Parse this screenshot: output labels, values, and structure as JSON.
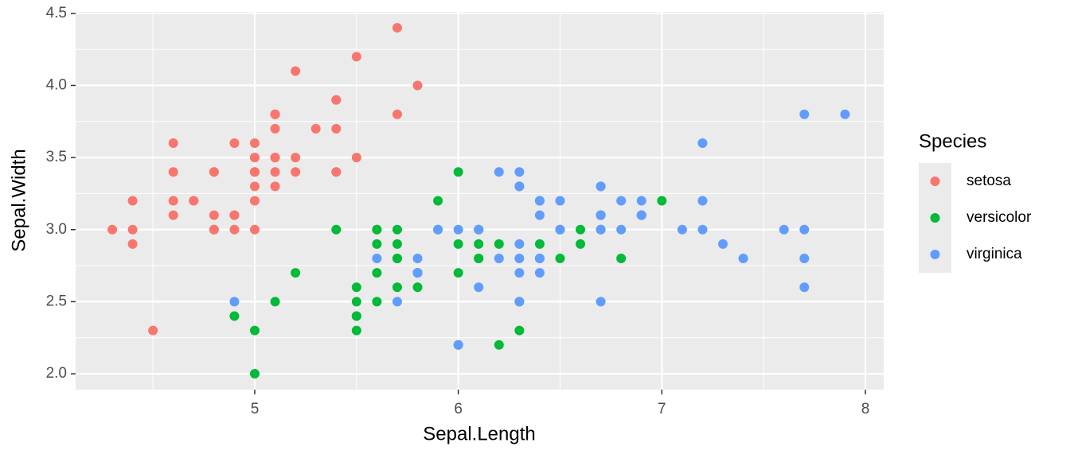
{
  "chart_data": {
    "type": "scatter",
    "x_label": "Sepal.Length",
    "y_label": "Sepal.Width",
    "legend_title": "Species",
    "xlim": [
      4.12,
      8.09
    ],
    "ylim": [
      1.89,
      4.51
    ],
    "xticks": [
      5,
      6,
      7,
      8
    ],
    "yticks": [
      {
        "value": 2,
        "label": "2.0"
      },
      2.5,
      {
        "value": 3,
        "label": "3.0"
      },
      3.5,
      {
        "value": 4,
        "label": "4.0"
      },
      4.5
    ],
    "grid": true,
    "legend_position": "right",
    "series": [
      {
        "name": "setosa",
        "color": "#F8766D",
        "x": [
          5.1,
          4.9,
          4.7,
          4.6,
          5.0,
          5.4,
          4.6,
          5.0,
          4.4,
          4.9,
          5.4,
          4.8,
          4.8,
          4.3,
          5.8,
          5.7,
          5.4,
          5.1,
          5.7,
          5.1,
          5.4,
          5.1,
          4.6,
          5.1,
          4.8,
          5.0,
          5.0,
          5.2,
          5.2,
          4.7,
          4.8,
          5.4,
          5.2,
          5.5,
          4.9,
          5.0,
          5.5,
          4.9,
          4.4,
          5.1,
          5.0,
          4.5,
          4.4,
          5.0,
          5.1,
          4.8,
          5.1,
          4.6,
          5.3,
          5.0
        ],
        "values": [
          3.5,
          3.0,
          3.2,
          3.1,
          3.6,
          3.9,
          3.4,
          3.4,
          2.9,
          3.1,
          3.7,
          3.4,
          3.0,
          3.0,
          4.0,
          4.4,
          3.9,
          3.5,
          3.8,
          3.8,
          3.4,
          3.7,
          3.6,
          3.3,
          3.4,
          3.0,
          3.4,
          3.5,
          3.4,
          3.2,
          3.1,
          3.4,
          4.1,
          4.2,
          3.1,
          3.2,
          3.5,
          3.6,
          3.0,
          3.4,
          3.5,
          2.3,
          3.2,
          3.5,
          3.8,
          3.0,
          3.8,
          3.2,
          3.7,
          3.3
        ]
      },
      {
        "name": "versicolor",
        "color": "#00BA38",
        "x": [
          7.0,
          6.4,
          6.9,
          5.5,
          6.5,
          5.7,
          6.3,
          4.9,
          6.6,
          5.2,
          5.0,
          5.9,
          6.0,
          6.1,
          5.6,
          6.7,
          5.6,
          5.8,
          6.2,
          5.6,
          5.9,
          6.1,
          6.3,
          6.1,
          6.4,
          6.6,
          6.8,
          6.7,
          6.0,
          5.7,
          5.5,
          5.5,
          5.8,
          6.0,
          5.4,
          6.0,
          6.7,
          6.3,
          5.6,
          5.5,
          5.5,
          6.1,
          5.8,
          5.0,
          5.6,
          5.7,
          5.7,
          6.2,
          5.1,
          5.7
        ],
        "values": [
          3.2,
          3.2,
          3.1,
          2.3,
          2.8,
          2.8,
          3.3,
          2.4,
          2.9,
          2.7,
          2.0,
          3.0,
          2.2,
          2.9,
          2.9,
          3.1,
          3.0,
          2.7,
          2.2,
          2.5,
          3.2,
          2.8,
          2.5,
          2.8,
          2.9,
          3.0,
          2.8,
          3.0,
          2.9,
          2.6,
          2.4,
          2.4,
          2.7,
          2.7,
          3.0,
          3.4,
          3.1,
          2.3,
          3.0,
          2.5,
          2.6,
          3.0,
          2.6,
          2.3,
          2.7,
          3.0,
          2.9,
          2.9,
          2.5,
          2.8
        ]
      },
      {
        "name": "virginica",
        "color": "#619CFF",
        "x": [
          6.3,
          5.8,
          7.1,
          6.3,
          6.5,
          7.6,
          4.9,
          7.3,
          6.7,
          7.2,
          6.5,
          6.4,
          6.8,
          5.7,
          5.8,
          6.4,
          6.5,
          7.7,
          7.7,
          6.0,
          6.9,
          5.6,
          7.7,
          6.3,
          6.7,
          7.2,
          6.2,
          6.1,
          6.4,
          7.2,
          7.4,
          7.9,
          6.4,
          6.3,
          6.1,
          7.7,
          6.3,
          6.4,
          6.0,
          6.9,
          6.7,
          6.9,
          5.8,
          6.8,
          6.7,
          6.7,
          6.3,
          6.5,
          6.2,
          5.9
        ],
        "values": [
          3.3,
          2.7,
          3.0,
          2.9,
          3.0,
          3.0,
          2.5,
          2.9,
          2.5,
          3.6,
          3.2,
          2.7,
          3.0,
          2.5,
          2.8,
          3.2,
          3.0,
          3.8,
          2.6,
          2.2,
          3.2,
          2.8,
          2.8,
          2.7,
          3.3,
          3.2,
          2.8,
          3.0,
          2.8,
          3.0,
          2.8,
          3.8,
          2.8,
          2.8,
          2.6,
          3.0,
          3.4,
          3.1,
          3.0,
          3.1,
          3.1,
          3.1,
          2.7,
          3.2,
          3.3,
          3.0,
          2.5,
          3.0,
          3.4,
          3.0
        ]
      }
    ]
  }
}
